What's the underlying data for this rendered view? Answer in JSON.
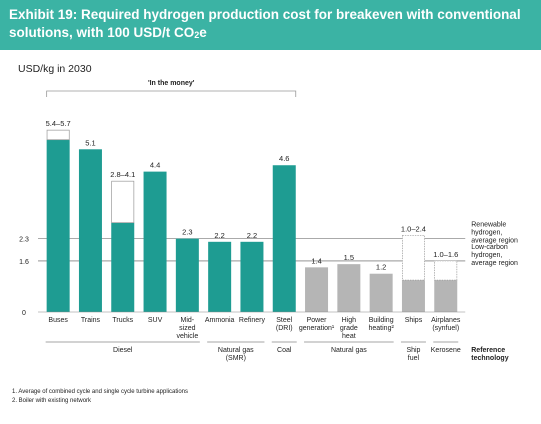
{
  "title_line1": "Exhibit 19: Required hydrogen production cost for breakeven with conventional",
  "title_line2_main": "solutions, with 100 USD/t CO",
  "title_line2_sub": "2",
  "title_line2_end": "e",
  "colors": {
    "header": "#3bb3a4",
    "teal": "#1e9c92",
    "gray": "#b5b5b5",
    "range_border": "#999999"
  },
  "chart_data": {
    "type": "bar",
    "ylabel": "USD/kg in 2030",
    "ylim": [
      0,
      6.3
    ],
    "yticks": [
      0,
      1.6,
      2.3
    ],
    "ytick_labels": [
      "0",
      "1.6",
      "2.3"
    ],
    "in_the_money_label": "'In the money'",
    "in_the_money_span": [
      0,
      7
    ],
    "bars": [
      {
        "label": [
          "Buses"
        ],
        "low": 5.4,
        "high": 5.7,
        "value_label": "5.4–5.7",
        "color": "teal"
      },
      {
        "label": [
          "Trains"
        ],
        "low": 5.1,
        "high": 5.1,
        "value_label": "5.1",
        "color": "teal"
      },
      {
        "label": [
          "Trucks"
        ],
        "low": 2.8,
        "high": 4.1,
        "value_label": "2.8–4.1",
        "color": "teal"
      },
      {
        "label": [
          "SUV"
        ],
        "low": 4.4,
        "high": 4.4,
        "value_label": "4.4",
        "color": "teal"
      },
      {
        "label": [
          "Mid-",
          "sized",
          "vehicle"
        ],
        "low": 2.3,
        "high": 2.3,
        "value_label": "2.3",
        "color": "teal"
      },
      {
        "label": [
          "Ammonia"
        ],
        "low": 2.2,
        "high": 2.2,
        "value_label": "2.2",
        "color": "teal"
      },
      {
        "label": [
          "Refinery"
        ],
        "low": 2.2,
        "high": 2.2,
        "value_label": "2.2",
        "color": "teal"
      },
      {
        "label": [
          "Steel",
          "(DRI)"
        ],
        "low": 4.6,
        "high": 4.6,
        "value_label": "4.6",
        "color": "teal"
      },
      {
        "label": [
          "Power",
          "generation¹"
        ],
        "low": 1.4,
        "high": 1.4,
        "value_label": "1.4",
        "color": "gray"
      },
      {
        "label": [
          "High",
          "grade",
          "heat"
        ],
        "low": 1.5,
        "high": 1.5,
        "value_label": "1.5",
        "color": "gray"
      },
      {
        "label": [
          "Building",
          "heating²"
        ],
        "low": 1.2,
        "high": 1.2,
        "value_label": "1.2",
        "color": "gray"
      },
      {
        "label": [
          "Ships"
        ],
        "low": 1.0,
        "high": 2.4,
        "value_label": "1.0–2.4",
        "color": "gray"
      },
      {
        "label": [
          "Airplanes",
          "(synfuel)"
        ],
        "low": 1.0,
        "high": 1.6,
        "value_label": "1.0–1.6",
        "color": "gray"
      }
    ],
    "reference_lines": [
      {
        "value": 2.3,
        "label": [
          "Renewable",
          "hydrogen,",
          "average region"
        ]
      },
      {
        "value": 1.6,
        "label": [
          "Low-carbon",
          "hydrogen,",
          "average region"
        ]
      }
    ],
    "groups": [
      {
        "label": [
          "Diesel"
        ],
        "start": 0,
        "end": 4
      },
      {
        "label": [
          "Natural gas",
          "(SMR)"
        ],
        "start": 5,
        "end": 6
      },
      {
        "label": [
          "Coal"
        ],
        "start": 7,
        "end": 7
      },
      {
        "label": [
          "Natural gas"
        ],
        "start": 8,
        "end": 10
      },
      {
        "label": [
          "Ship",
          "fuel"
        ],
        "start": 11,
        "end": 11
      },
      {
        "label": [
          "Kerosene"
        ],
        "start": 12,
        "end": 12
      }
    ],
    "reference_technology_label": [
      "Reference",
      "technology"
    ]
  },
  "footnotes": [
    "1.  Average of combined cycle and single cycle turbine applications",
    "2.  Boiler with existing network"
  ]
}
